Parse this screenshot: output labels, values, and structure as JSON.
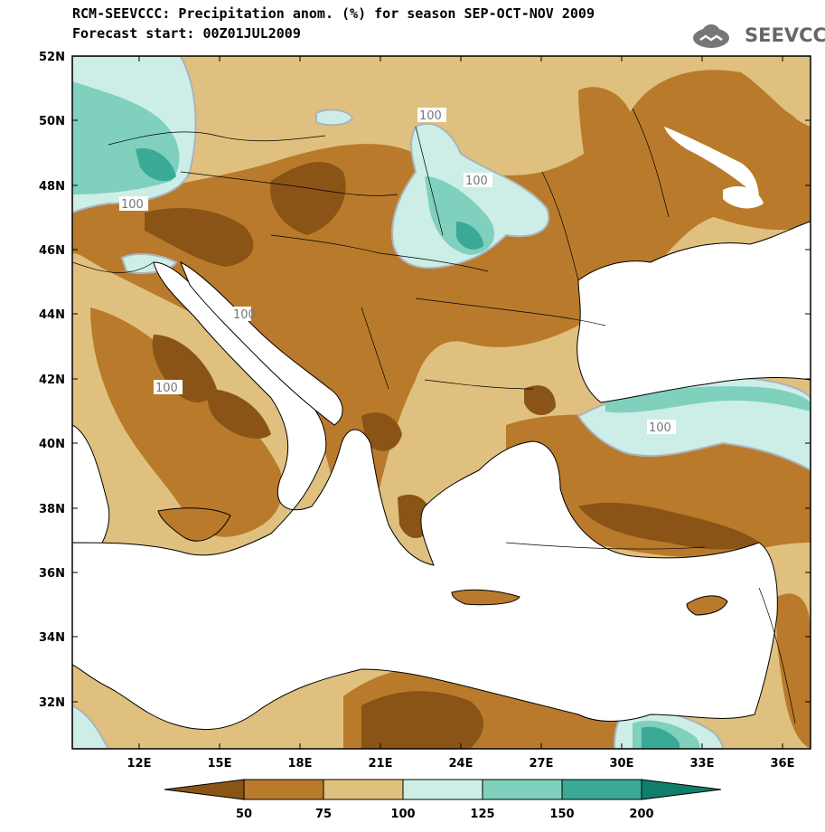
{
  "header": {
    "title": "RCM-SEEVCCC: Precipitation anom. (%) for season SEP-OCT-NOV 2009",
    "subtitle": "Forecast start: 00Z01JUL2009",
    "logo_text": "SEEVCCC"
  },
  "map": {
    "variable": "Precipitation anomaly",
    "units": "%",
    "lat_labels": [
      "52N",
      "50N",
      "48N",
      "46N",
      "44N",
      "42N",
      "40N",
      "38N",
      "36N",
      "34N",
      "32N"
    ],
    "lon_labels": [
      "12E",
      "15E",
      "18E",
      "21E",
      "24E",
      "27E",
      "30E",
      "33E",
      "36E"
    ],
    "contour_labels": [
      "100",
      "100",
      "100",
      "100",
      "100",
      "100"
    ]
  },
  "legend": {
    "tick_labels": [
      "50",
      "75",
      "100",
      "125",
      "150",
      "200"
    ],
    "colors": [
      "#8a5416",
      "#b97a2b",
      "#e0c07e",
      "#cdeee6",
      "#7fd0bd",
      "#3aa996",
      "#0f7f6c"
    ]
  },
  "palette": {
    "below50": "#8a5416",
    "r50_75": "#b97a2b",
    "r75_100": "#e0c07e",
    "r100_125": "#cdeee6",
    "r125_150": "#7fd0bd",
    "r150_200": "#3aa996",
    "above200": "#0f7f6c",
    "sea": "#ffffff"
  }
}
